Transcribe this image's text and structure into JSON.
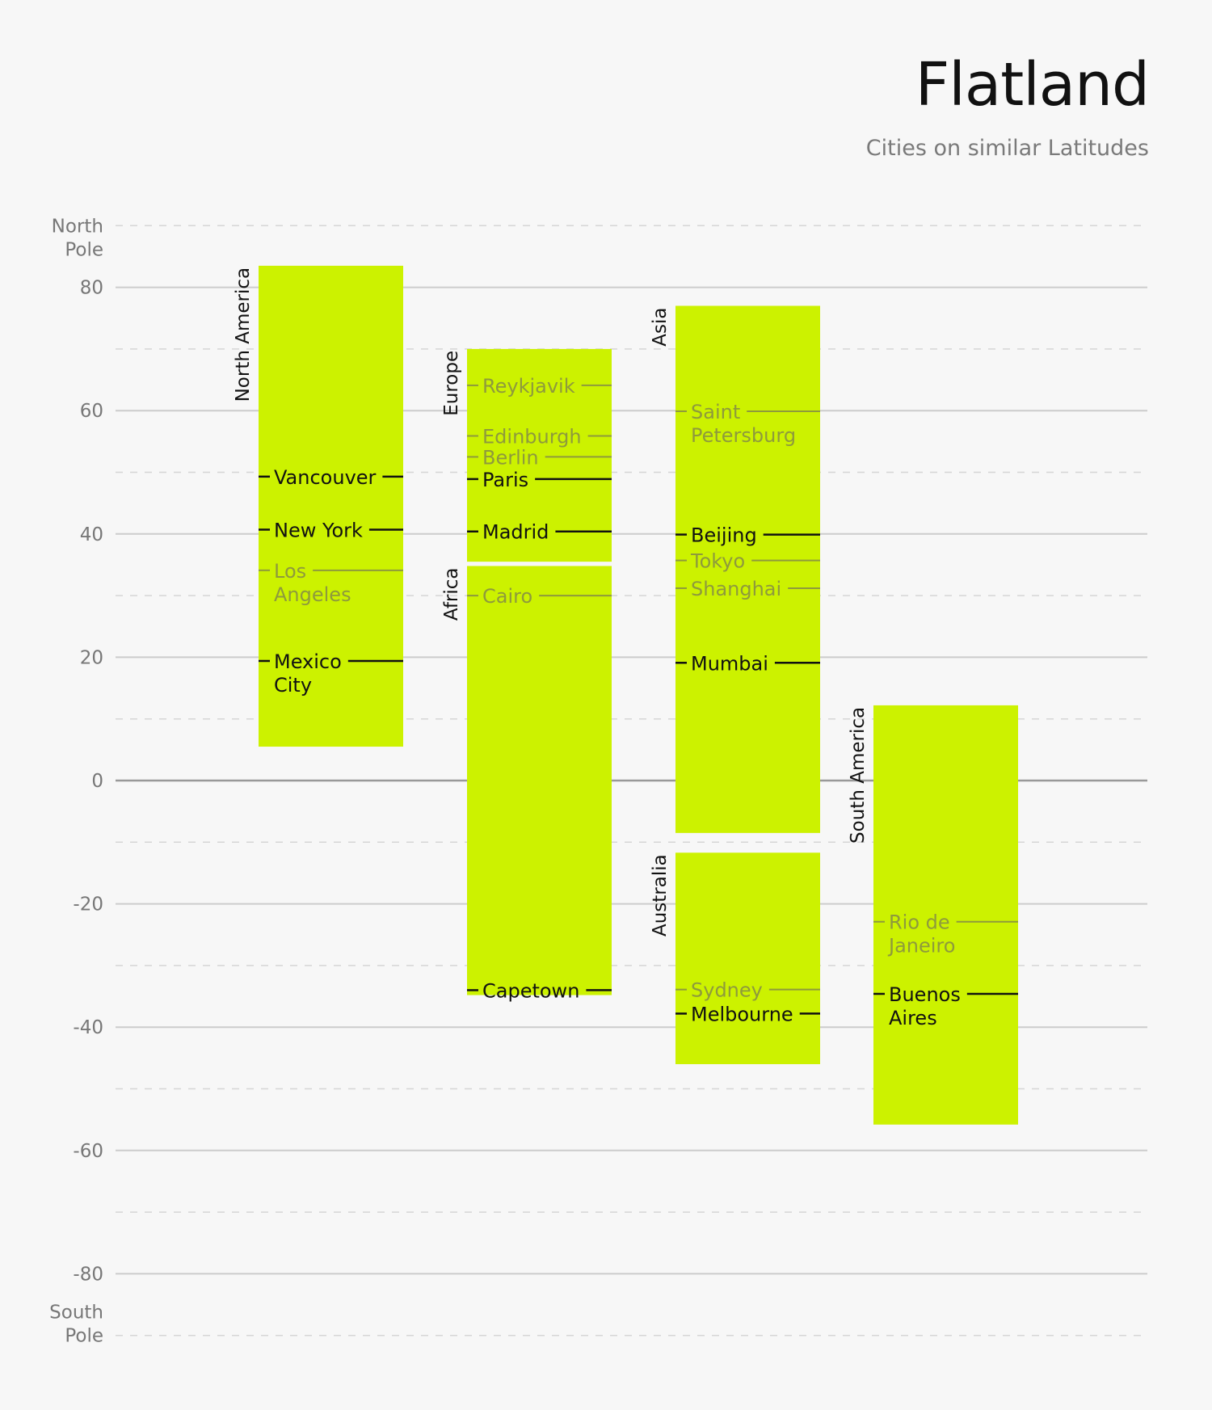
{
  "title": "Flatland",
  "subtitle": "Cities on similar Latitudes",
  "colors": {
    "background": "#f7f7f7",
    "region_fill": "#ccf200",
    "highlight_city": "#111111",
    "muted_city": "#8e9a3c",
    "axis_text": "#777777",
    "grid_major": "#cccccc",
    "grid_minor": "#d6d6d6",
    "zero_line": "#999999"
  },
  "chart_data": {
    "type": "range-bar",
    "title": "Flatland",
    "subtitle": "Cities on similar Latitudes",
    "ylim": [
      -90,
      90
    ],
    "yticks": [
      80,
      60,
      40,
      20,
      0,
      -20,
      -40,
      -60,
      -80
    ],
    "ytick_labels": [
      "80",
      "60",
      "40",
      "20",
      "0",
      "-20",
      "-40",
      "-60",
      "-80"
    ],
    "pole_labels": {
      "north": [
        "North",
        "Pole"
      ],
      "south": [
        "South",
        "Pole"
      ]
    },
    "minor_gridlines": [
      90,
      70,
      50,
      30,
      10,
      -10,
      -30,
      -50,
      -70,
      -90
    ],
    "regions": [
      {
        "name": "North America",
        "column": 0,
        "top": 83.5,
        "bottom": 5.5
      },
      {
        "name": "Europe",
        "column": 1,
        "top": 70,
        "bottom": 35.5
      },
      {
        "name": "Africa",
        "column": 1,
        "top": 34.8,
        "bottom": -34.8
      },
      {
        "name": "Asia",
        "column": 2,
        "top": 77,
        "bottom": -8.5
      },
      {
        "name": "Australia",
        "column": 2,
        "top": -11.7,
        "bottom": -46
      },
      {
        "name": "South America",
        "column": 3,
        "top": 12.2,
        "bottom": -55.8
      }
    ],
    "cities": [
      {
        "lines": [
          "Vancouver"
        ],
        "lat": 49.3,
        "region": "North America",
        "highlight": true
      },
      {
        "lines": [
          "New York"
        ],
        "lat": 40.7,
        "region": "North America",
        "highlight": true
      },
      {
        "lines": [
          "Los",
          "Angeles"
        ],
        "lat": 34.1,
        "region": "North America",
        "highlight": false
      },
      {
        "lines": [
          "Mexico",
          "City"
        ],
        "lat": 19.4,
        "region": "North America",
        "highlight": true
      },
      {
        "lines": [
          "Reykjavik"
        ],
        "lat": 64.1,
        "region": "Europe",
        "highlight": false
      },
      {
        "lines": [
          "Edinburgh"
        ],
        "lat": 55.9,
        "region": "Europe",
        "highlight": false
      },
      {
        "lines": [
          "Berlin"
        ],
        "lat": 52.5,
        "region": "Europe",
        "highlight": false
      },
      {
        "lines": [
          "Paris"
        ],
        "lat": 48.9,
        "region": "Europe",
        "highlight": true
      },
      {
        "lines": [
          "Madrid"
        ],
        "lat": 40.4,
        "region": "Europe",
        "highlight": true
      },
      {
        "lines": [
          "Cairo"
        ],
        "lat": 30.0,
        "region": "Africa",
        "highlight": false
      },
      {
        "lines": [
          "Capetown"
        ],
        "lat": -34.0,
        "region": "Africa",
        "highlight": true
      },
      {
        "lines": [
          "Saint",
          "Petersburg"
        ],
        "lat": 59.9,
        "region": "Asia",
        "highlight": false
      },
      {
        "lines": [
          "Beijing"
        ],
        "lat": 39.9,
        "region": "Asia",
        "highlight": true
      },
      {
        "lines": [
          "Tokyo"
        ],
        "lat": 35.7,
        "region": "Asia",
        "highlight": false
      },
      {
        "lines": [
          "Shanghai"
        ],
        "lat": 31.2,
        "region": "Asia",
        "highlight": false
      },
      {
        "lines": [
          "Mumbai"
        ],
        "lat": 19.1,
        "region": "Asia",
        "highlight": true
      },
      {
        "lines": [
          "Melbourne"
        ],
        "lat": -37.8,
        "region": "Australia",
        "highlight": true
      },
      {
        "lines": [
          "Sydney"
        ],
        "lat": -33.9,
        "region": "Australia",
        "highlight": false
      },
      {
        "lines": [
          "Rio de",
          "Janeiro"
        ],
        "lat": -22.9,
        "region": "South America",
        "highlight": false
      },
      {
        "lines": [
          "Buenos",
          "Aires"
        ],
        "lat": -34.6,
        "region": "South America",
        "highlight": true
      }
    ]
  }
}
